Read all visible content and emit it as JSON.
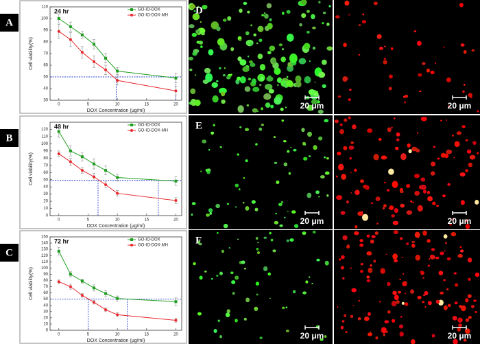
{
  "chart_data": [
    {
      "type": "line",
      "title": "24 hr",
      "x_label": "DOX Concentration (μg/ml)",
      "y_label": "Cell viability(%)",
      "x": [
        0,
        2,
        4,
        6,
        8,
        10,
        20
      ],
      "xlim": [
        -1.5,
        21
      ],
      "xticks": [
        0,
        5,
        10,
        15,
        20
      ],
      "ylim": [
        30,
        110
      ],
      "yticks": [
        30,
        40,
        50,
        60,
        70,
        80,
        90,
        100,
        110
      ],
      "series": [
        {
          "name": "GO-IO-DOX",
          "color": "#1e9e1e",
          "marker": "square",
          "values": [
            100,
            93,
            86,
            78,
            66,
            55,
            49
          ],
          "errors": [
            4,
            4,
            3,
            4,
            4,
            3,
            4
          ]
        },
        {
          "name": "GO-IO-DOX-MH",
          "color": "#e8262b",
          "marker": "circle",
          "values": [
            89,
            82,
            71,
            63,
            56,
            47,
            38
          ],
          "errors": [
            6,
            6,
            5,
            5,
            4,
            4,
            4
          ]
        }
      ],
      "ref_lines": {
        "color": "#2a3fd0",
        "y": 50,
        "x": [
          9.8,
          20
        ]
      }
    },
    {
      "type": "line",
      "title": "48 hr",
      "x_label": "DOX Concentration (μg/ml)",
      "y_label": "Cell viability(%)",
      "x": [
        0,
        2,
        4,
        6,
        8,
        10,
        20
      ],
      "xlim": [
        -1.5,
        21
      ],
      "xticks": [
        0,
        5,
        10,
        15,
        20
      ],
      "ylim": [
        0,
        130
      ],
      "yticks": [
        0,
        10,
        20,
        30,
        40,
        50,
        60,
        70,
        80,
        90,
        100,
        110,
        120
      ],
      "series": [
        {
          "name": "GO-IO-DOX",
          "color": "#1e9e1e",
          "marker": "square",
          "values": [
            117,
            90,
            82,
            72,
            63,
            53,
            48
          ],
          "errors": [
            8,
            7,
            6,
            7,
            6,
            5,
            6
          ]
        },
        {
          "name": "GO-IO-DOX-MH",
          "color": "#e8262b",
          "marker": "circle",
          "values": [
            86,
            75,
            63,
            54,
            43,
            31,
            21
          ],
          "errors": [
            4,
            5,
            4,
            5,
            4,
            4,
            4
          ]
        }
      ],
      "ref_lines": {
        "color": "#2a3fd0",
        "y": 49,
        "x": [
          6.7,
          17
        ]
      }
    },
    {
      "type": "line",
      "title": "72 hr",
      "x_label": "DOX Concentration (μg/ml)",
      "y_label": "Cell viability(%)",
      "x": [
        0,
        2,
        4,
        6,
        8,
        10,
        20
      ],
      "xlim": [
        -1.5,
        21
      ],
      "xticks": [
        0,
        5,
        10,
        15,
        20
      ],
      "ylim": [
        0,
        150
      ],
      "yticks": [
        0,
        10,
        20,
        30,
        40,
        50,
        60,
        70,
        80,
        90,
        100,
        110,
        120,
        130,
        140,
        150
      ],
      "series": [
        {
          "name": "GO-IO-DOX",
          "color": "#1e9e1e",
          "marker": "square",
          "values": [
            127,
            90,
            79,
            68,
            59,
            51,
            46
          ],
          "errors": [
            6,
            4,
            3,
            5,
            5,
            4,
            6
          ]
        },
        {
          "name": "GO-IO-DOX-MH",
          "color": "#e8262b",
          "marker": "circle",
          "values": [
            78,
            70,
            56,
            45,
            33,
            25,
            16
          ],
          "errors": [
            3,
            4,
            3,
            3,
            3,
            3,
            3
          ]
        }
      ],
      "ref_lines": {
        "color": "#2a3fd0",
        "y": 50,
        "x": [
          5,
          11.7
        ]
      }
    }
  ],
  "panels": {
    "labels": [
      "A",
      "B",
      "C",
      "D",
      "E",
      "F"
    ],
    "scale_bar": "20 μm"
  }
}
